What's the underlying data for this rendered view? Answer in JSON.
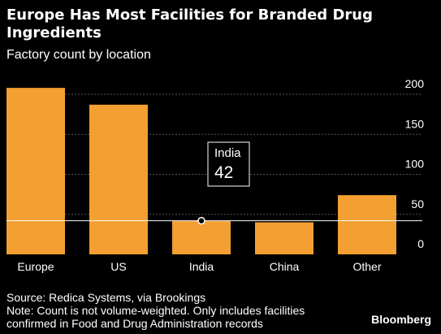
{
  "header": {
    "title": "Europe Has Most Facilities for Branded Drug Ingredients",
    "subtitle": "Factory count by location"
  },
  "footer": {
    "source": "Source: Redica Systems, via Brookings",
    "note_line1": "Note: Count is not volume-weighted. Only includes facilities",
    "note_line2": "confirmed in Food and Drug Administration records",
    "brand": "Bloomberg"
  },
  "colors": {
    "background": "#000000",
    "bar": "#F39F32",
    "gridline": "#555555",
    "highlight_line": "#ffffff"
  },
  "chart_data": {
    "type": "bar",
    "categories": [
      "Europe",
      "US",
      "India",
      "China",
      "Other"
    ],
    "values": [
      208,
      187,
      42,
      40,
      74
    ],
    "ylim": [
      0,
      200
    ],
    "yticks": [
      0,
      50,
      100,
      150,
      200
    ],
    "ytick_labels": [
      "0",
      "50",
      "100",
      "150",
      "200"
    ],
    "yaxis_position": "right",
    "grid": true,
    "xlabel": "",
    "ylabel": "",
    "highlight": {
      "category": "India",
      "value": 42,
      "label": "India",
      "value_label": "42"
    }
  }
}
